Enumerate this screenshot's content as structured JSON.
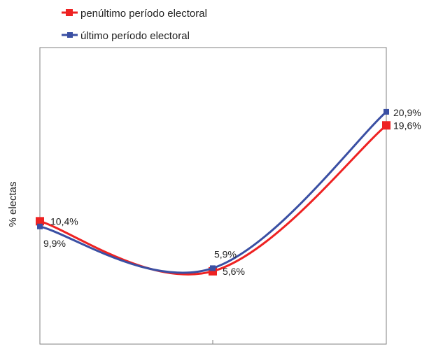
{
  "chart_data": {
    "type": "line",
    "ylabel": "% electas",
    "x": [
      0,
      1,
      2
    ],
    "xlabel": "",
    "ylim": [
      0,
      24
    ],
    "grid": false,
    "legend_position": "top-left",
    "series": [
      {
        "name": "penúltimo período electoral",
        "color": "#ee2222",
        "values": [
          10.4,
          5.6,
          19.6
        ],
        "labels": [
          "10,4%",
          "5,6%",
          "19,6%"
        ]
      },
      {
        "name": "último período electoral",
        "color": "#3a4fa3",
        "values": [
          9.9,
          5.9,
          20.9
        ],
        "labels": [
          "9,9%",
          "5,9%",
          "20,9%"
        ]
      }
    ]
  }
}
